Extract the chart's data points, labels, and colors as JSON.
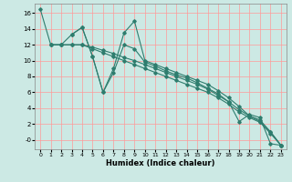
{
  "xlabel": "Humidex (Indice chaleur)",
  "background_color": "#cce9e4",
  "grid_color": "#ff9999",
  "line_color": "#2e7d6e",
  "xlim": [
    -0.5,
    23.5
  ],
  "ylim": [
    -1.2,
    17.2
  ],
  "xticks": [
    0,
    1,
    2,
    3,
    4,
    5,
    6,
    7,
    8,
    9,
    10,
    11,
    12,
    13,
    14,
    15,
    16,
    17,
    18,
    19,
    20,
    21,
    22,
    23
  ],
  "yticks": [
    0,
    2,
    4,
    6,
    8,
    10,
    12,
    14,
    16
  ],
  "ytick_labels": [
    "-0",
    "2",
    "4",
    "6",
    "8",
    "10",
    "12",
    "14",
    "16"
  ],
  "lines": [
    {
      "x": [
        0,
        1,
        2,
        3,
        4,
        5,
        6,
        7,
        8,
        9,
        10,
        11,
        12,
        13,
        14,
        15,
        16,
        17,
        18,
        19,
        20,
        21,
        22,
        23
      ],
      "y": [
        16.5,
        12,
        12,
        13.3,
        14.2,
        10.5,
        6.0,
        8.5,
        12.0,
        11.5,
        9.8,
        9.3,
        8.7,
        8.2,
        7.8,
        7.2,
        6.5,
        5.8,
        4.8,
        2.3,
        3.2,
        2.8,
        -0.5,
        -0.7
      ]
    },
    {
      "x": [
        3,
        4,
        5,
        6,
        7,
        8,
        9,
        10,
        11,
        12,
        13,
        14,
        15,
        16,
        17,
        18,
        19,
        20,
        21,
        22,
        23
      ],
      "y": [
        13.3,
        14.2,
        10.5,
        6.0,
        9.0,
        13.5,
        15.0,
        10.0,
        9.5,
        9.0,
        8.5,
        8.0,
        7.5,
        7.0,
        6.2,
        5.3,
        4.2,
        3.0,
        2.5,
        1.0,
        -0.7
      ]
    },
    {
      "x": [
        1,
        2,
        3,
        4,
        5,
        6,
        7,
        8,
        9,
        10,
        11,
        12,
        13,
        14,
        15,
        16,
        17,
        18,
        19,
        20,
        21,
        22,
        23
      ],
      "y": [
        12,
        12,
        12,
        12,
        11.5,
        11.0,
        10.5,
        10.0,
        9.5,
        9.0,
        8.5,
        8.0,
        7.5,
        7.0,
        6.5,
        6.0,
        5.3,
        4.5,
        3.5,
        2.8,
        2.2,
        0.8,
        -0.7
      ]
    },
    {
      "x": [
        1,
        2,
        3,
        4,
        5,
        6,
        7,
        8,
        9,
        10,
        11,
        12,
        13,
        14,
        15,
        16,
        17,
        18,
        19,
        20,
        21,
        22,
        23
      ],
      "y": [
        12,
        12,
        12,
        12,
        11.7,
        11.3,
        10.9,
        10.4,
        10.0,
        9.5,
        9.0,
        8.5,
        8.0,
        7.5,
        7.0,
        6.4,
        5.6,
        4.8,
        3.8,
        3.0,
        2.3,
        1.0,
        -0.7
      ]
    }
  ]
}
